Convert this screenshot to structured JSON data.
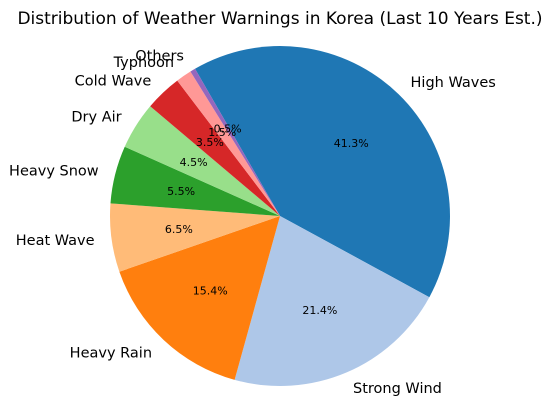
{
  "chart_data": {
    "type": "pie",
    "title": "Distribution of Weather Warnings in Korea (Last 10 Years Est.)",
    "start_angle_deg": 120,
    "direction": "clockwise",
    "slices": [
      {
        "label": "High Waves",
        "value": 41.3,
        "pct_label": "41.3%",
        "color": "#1f77b4"
      },
      {
        "label": "Strong Wind",
        "value": 21.4,
        "pct_label": "21.4%",
        "color": "#aec7e8"
      },
      {
        "label": "Heavy Rain",
        "value": 15.4,
        "pct_label": "15.4%",
        "color": "#ff7f0e"
      },
      {
        "label": "Heat Wave",
        "value": 6.5,
        "pct_label": "6.5%",
        "color": "#ffbb78"
      },
      {
        "label": "Heavy Snow",
        "value": 5.5,
        "pct_label": "5.5%",
        "color": "#2ca02c"
      },
      {
        "label": "Dry Air",
        "value": 4.5,
        "pct_label": "4.5%",
        "color": "#98df8a"
      },
      {
        "label": "Cold Wave",
        "value": 3.5,
        "pct_label": "3.5%",
        "color": "#d62728"
      },
      {
        "label": "Typhoon",
        "value": 1.5,
        "pct_label": "1.5%",
        "color": "#ff9896"
      },
      {
        "label": "Others",
        "value": 0.5,
        "pct_label": "0.5%",
        "color": "#9467bd"
      }
    ]
  }
}
